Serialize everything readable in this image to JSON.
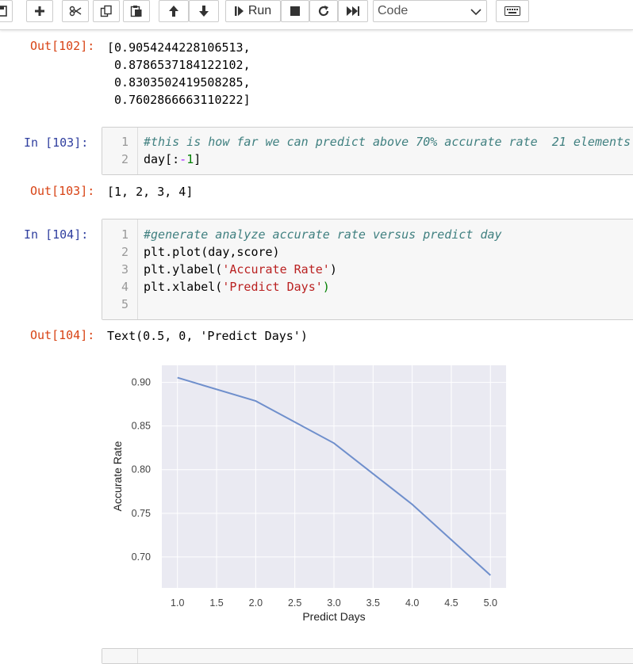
{
  "toolbar": {
    "run_label": "Run",
    "cell_type": "Code",
    "buttons": [
      "save-icon",
      "plus-icon",
      "cut-icon",
      "copy-icon",
      "paste-icon",
      "arrow-up-icon",
      "arrow-down-icon",
      "run-icon",
      "stop-icon",
      "restart-icon",
      "fast-forward-icon",
      "keyboard-icon"
    ]
  },
  "cells": {
    "out102": {
      "prompt": "Out[102]:",
      "lines": [
        "[0.9054244228106513,",
        " 0.8786537184122102,",
        " 0.8303502419508285,",
        " 0.7602866663110222]"
      ]
    },
    "in103": {
      "prompt": "In  [103]:",
      "line_numbers": [
        "1",
        "2"
      ],
      "code": {
        "l1": "#this is how far we can predict above 70% accurate rate  21 elements",
        "l2_a": "day[:",
        "l2_op": "-",
        "l2_num": "1",
        "l2_b": "]"
      }
    },
    "out103": {
      "prompt": "Out[103]:",
      "text": "[1, 2, 3, 4]"
    },
    "in104": {
      "prompt": "In  [104]:",
      "line_numbers": [
        "1",
        "2",
        "3",
        "4",
        "5"
      ],
      "code": {
        "l1": "#generate analyze accurate rate versus predict day",
        "l2": "plt.plot(day,score)",
        "l3_a": "plt.ylabel(",
        "l3_s": "'Accurate Rate'",
        "l3_b": ")",
        "l4_a": "plt.xlabel(",
        "l4_s": "'Predict Days'",
        "l4_b": ")"
      }
    },
    "out104": {
      "prompt": "Out[104]:",
      "text": "Text(0.5, 0, 'Predict Days')"
    }
  },
  "chart_data": {
    "type": "line",
    "x": [
      1.0,
      2.0,
      3.0,
      4.0,
      5.0
    ],
    "series": [
      {
        "values": [
          0.9054244228106513,
          0.8786537184122102,
          0.8303502419508285,
          0.7602866663110222,
          0.679
        ],
        "color": "#6f8fcc"
      }
    ],
    "xlabel": "Predict Days",
    "ylabel": "Accurate Rate",
    "xlim": [
      0.8,
      5.2
    ],
    "ylim": [
      0.6645,
      0.9196
    ],
    "xticks": [
      "1.0",
      "1.5",
      "2.0",
      "2.5",
      "3.0",
      "3.5",
      "4.0",
      "4.5",
      "5.0"
    ],
    "yticks": [
      "0.70",
      "0.75",
      "0.80",
      "0.85",
      "0.90"
    ],
    "grid": true,
    "background": "#eaeaf2",
    "style": "seaborn darkgrid"
  }
}
